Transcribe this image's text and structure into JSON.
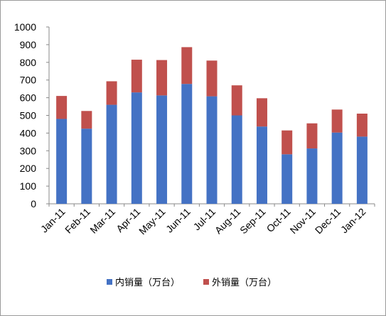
{
  "chart_data": {
    "type": "bar",
    "stacked": true,
    "categories": [
      "Jan-11",
      "Feb-11",
      "Mar-11",
      "Apr-11",
      "May-11",
      "Jun-11",
      "Jul-11",
      "Aug-11",
      "Sep-11",
      "Oct-11",
      "Nov-11",
      "Dec-11",
      "Jan-12"
    ],
    "series": [
      {
        "name": "内销量（万台）",
        "color": "#4472C4",
        "values": [
          480,
          425,
          560,
          630,
          613,
          678,
          608,
          500,
          437,
          280,
          313,
          403,
          380
        ]
      },
      {
        "name": "外销量（万台）",
        "color": "#C0504D",
        "values": [
          130,
          100,
          133,
          185,
          200,
          208,
          202,
          170,
          160,
          135,
          142,
          130,
          130
        ]
      }
    ],
    "ylim": [
      0,
      1000
    ],
    "yticks": [
      0,
      100,
      200,
      300,
      400,
      500,
      600,
      700,
      800,
      900,
      1000
    ],
    "legend_position": "bottom",
    "grid": false
  }
}
